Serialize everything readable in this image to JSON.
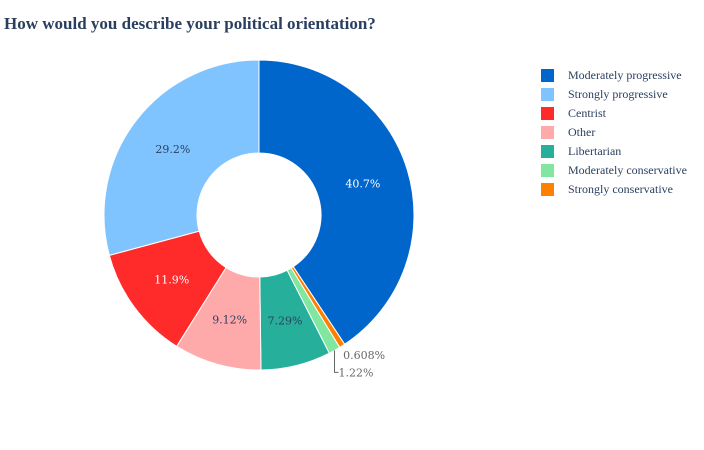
{
  "chart_data": {
    "type": "pie",
    "hole": 0.4,
    "direction": "clockwise",
    "title": "How would you describe your political orientation?",
    "slices": [
      {
        "label": "Moderately progressive",
        "value": 40.7,
        "value_label": "40.7%",
        "color": "#0066cc",
        "text_color": "#ffffff",
        "label_position": "inside"
      },
      {
        "label": "Strongly conservative",
        "value": 0.608,
        "value_label": "0.608%",
        "color": "#ff8000",
        "text_color": "#666666",
        "label_position": "outside"
      },
      {
        "label": "Moderately conservative",
        "value": 1.22,
        "value_label": "1.22%",
        "color": "#80e6a0",
        "text_color": "#666666",
        "label_position": "outside"
      },
      {
        "label": "Libertarian",
        "value": 7.29,
        "value_label": "7.29%",
        "color": "#26b09b",
        "text_color": "#2a3f5f",
        "label_position": "inside"
      },
      {
        "label": "Other",
        "value": 9.12,
        "value_label": "9.12%",
        "color": "#ffaaaa",
        "text_color": "#2a3f5f",
        "label_position": "inside"
      },
      {
        "label": "Centrist",
        "value": 11.9,
        "value_label": "11.9%",
        "color": "#ff2a2a",
        "text_color": "#ffffff",
        "label_position": "inside"
      },
      {
        "label": "Strongly progressive",
        "value": 29.2,
        "value_label": "29.2%",
        "color": "#80c4ff",
        "text_color": "#2a3f5f",
        "label_position": "inside"
      }
    ],
    "legend": {
      "placement": "right",
      "entries": [
        {
          "label": "Moderately progressive",
          "color": "#0066cc"
        },
        {
          "label": "Strongly progressive",
          "color": "#80c4ff"
        },
        {
          "label": "Centrist",
          "color": "#ff2a2a"
        },
        {
          "label": "Other",
          "color": "#ffaaaa"
        },
        {
          "label": "Libertarian",
          "color": "#26b09b"
        },
        {
          "label": "Moderately conservative",
          "color": "#80e6a0"
        },
        {
          "label": "Strongly conservative",
          "color": "#ff8000"
        }
      ]
    }
  }
}
